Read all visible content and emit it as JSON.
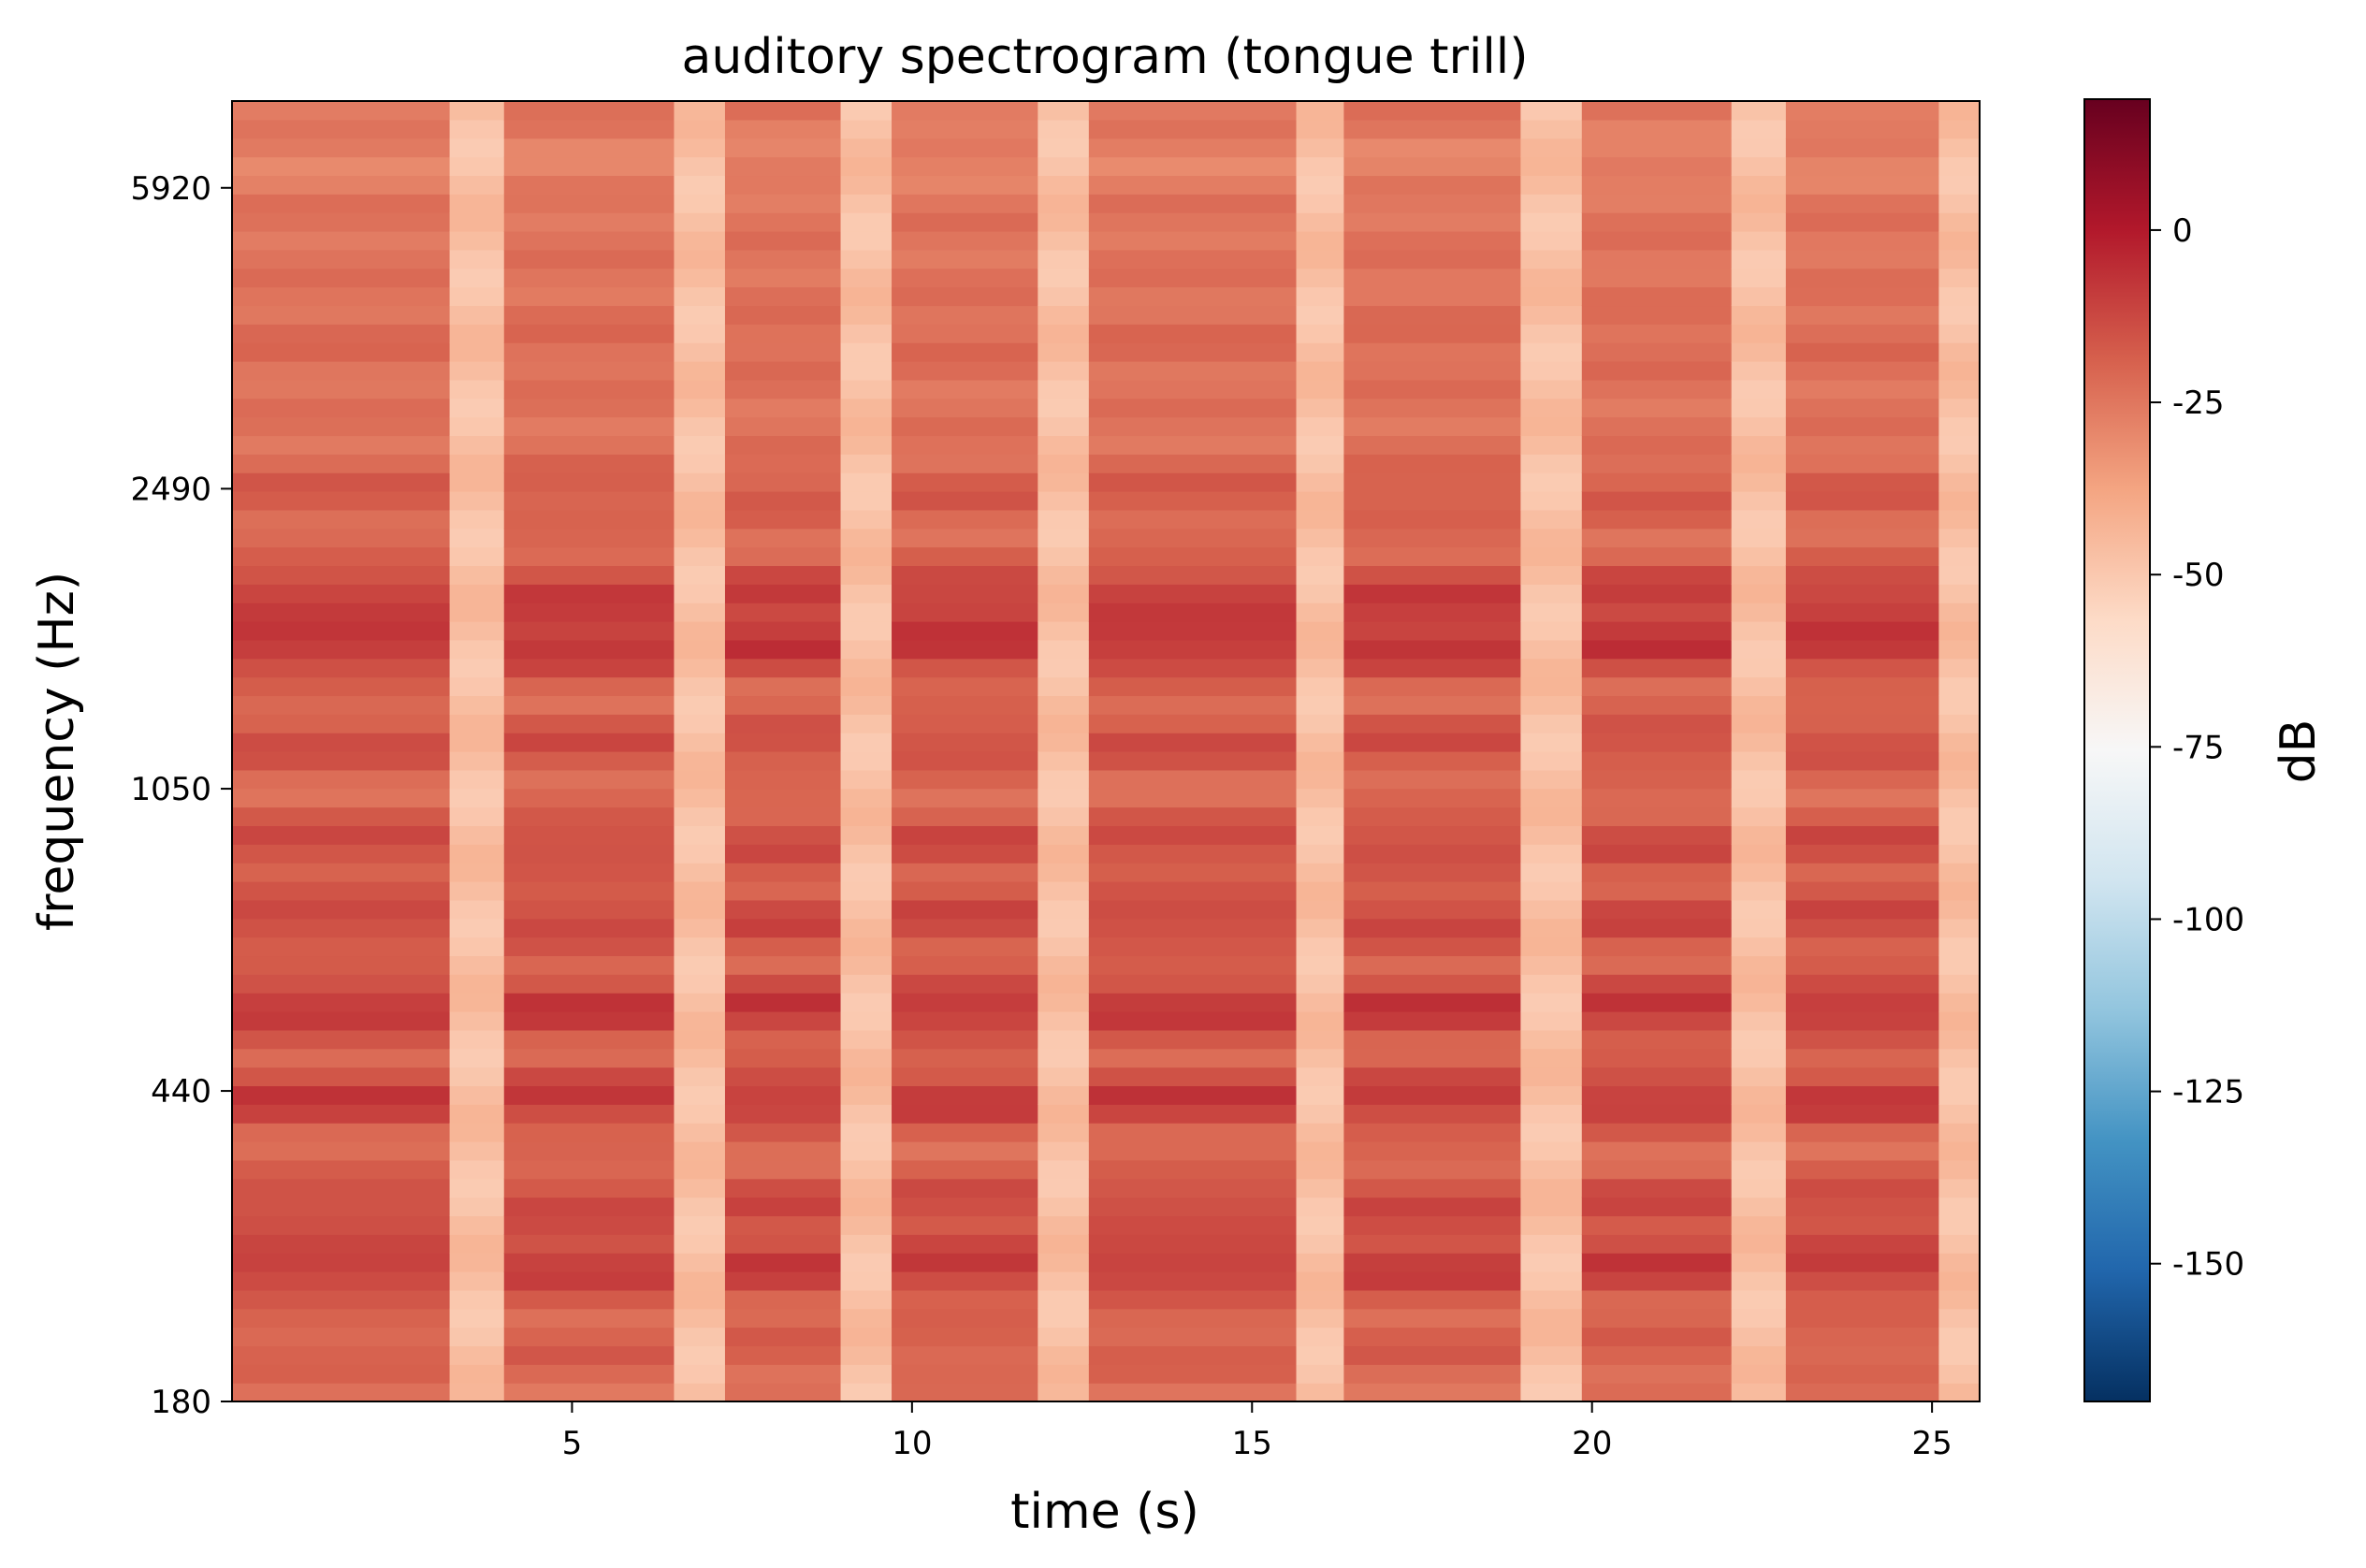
{
  "chart_data": {
    "type": "heatmap",
    "title": "auditory spectrogram (tongue trill)",
    "xlabel": "time (s)",
    "ylabel": "frequency (Hz)",
    "colorbar_label": "dB",
    "colormap": "RdBu_r",
    "x_range": [
      0,
      25.7
    ],
    "x_ticks": [
      5,
      10,
      15,
      20,
      25
    ],
    "y_scale": "log",
    "y_range": [
      180,
      7600
    ],
    "y_ticks": [
      180,
      440,
      1050,
      2490,
      5920
    ],
    "color_range": [
      -170,
      19
    ],
    "color_ticks": [
      0,
      -25,
      -50,
      -75,
      -100,
      -125,
      -150
    ],
    "grid": false,
    "gap_segments_s": [
      [
        3.2,
        4.0
      ],
      [
        6.5,
        7.25
      ],
      [
        8.95,
        9.7
      ],
      [
        11.85,
        12.6
      ],
      [
        15.65,
        16.35
      ],
      [
        18.95,
        19.85
      ],
      [
        22.05,
        22.85
      ],
      [
        25.1,
        25.7
      ]
    ],
    "gap_level_db": -47,
    "background_level_db": -24,
    "formant_bands": [
      {
        "freq_hz": 6400,
        "level_db": -32
      },
      {
        "freq_hz": 3800,
        "level_db": -20
      },
      {
        "freq_hz": 2450,
        "level_db": -12
      },
      {
        "freq_hz": 1850,
        "level_db": 0
      },
      {
        "freq_hz": 1580,
        "level_db": 5
      },
      {
        "freq_hz": 1200,
        "level_db": -6
      },
      {
        "freq_hz": 900,
        "level_db": -4
      },
      {
        "freq_hz": 720,
        "level_db": -2
      },
      {
        "freq_hz": 560,
        "level_db": 6
      },
      {
        "freq_hz": 430,
        "level_db": 4
      },
      {
        "freq_hz": 320,
        "level_db": -4
      },
      {
        "freq_hz": 265,
        "level_db": 3
      },
      {
        "freq_hz": 210,
        "level_db": -14
      }
    ]
  }
}
